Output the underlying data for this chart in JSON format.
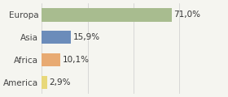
{
  "categories": [
    "America",
    "Africa",
    "Asia",
    "Europa"
  ],
  "values": [
    2.9,
    10.1,
    15.9,
    71.0
  ],
  "labels": [
    "2,9%",
    "10,1%",
    "15,9%",
    "71,0%"
  ],
  "bar_colors": [
    "#e8d87a",
    "#e8aa72",
    "#6b8cba",
    "#a8bc8f"
  ],
  "background_color": "#f5f5f0",
  "xlim": [
    0,
    100
  ],
  "label_fontsize": 7.5,
  "tick_fontsize": 7.5
}
